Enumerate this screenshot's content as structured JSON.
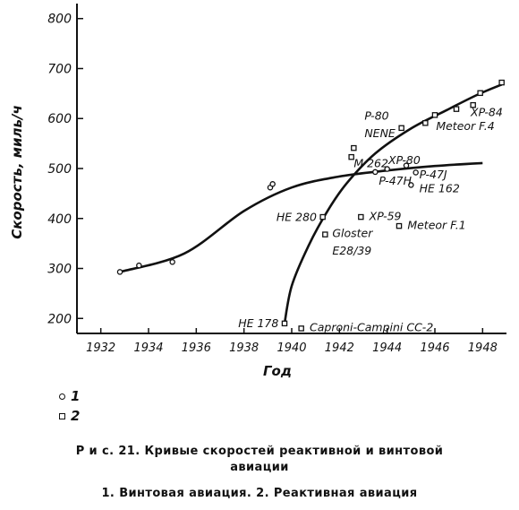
{
  "chart_data": {
    "type": "scatter",
    "xlabel": "Год",
    "ylabel": "Скорость, миль/ч",
    "xlim": [
      1931,
      1949
    ],
    "ylim": [
      170,
      830
    ],
    "xticks": [
      1932,
      1934,
      1936,
      1938,
      1940,
      1942,
      1944,
      1946,
      1948
    ],
    "yticks": [
      200,
      300,
      400,
      500,
      600,
      700,
      800
    ],
    "grid": false,
    "series": [
      {
        "name": "1",
        "marker": "circle",
        "points": [
          {
            "x": 1932.8,
            "y": 293
          },
          {
            "x": 1933.6,
            "y": 306
          },
          {
            "x": 1935.0,
            "y": 313
          },
          {
            "x": 1939.1,
            "y": 462
          },
          {
            "x": 1939.2,
            "y": 469
          },
          {
            "x": 1943.5,
            "y": 493
          },
          {
            "x": 1944.0,
            "y": 499
          },
          {
            "x": 1944.8,
            "y": 506
          },
          {
            "x": 1945.2,
            "y": 492
          },
          {
            "x": 1945.0,
            "y": 467
          }
        ],
        "curve": [
          {
            "x": 1932.8,
            "y": 293
          },
          {
            "x": 1935.5,
            "y": 330
          },
          {
            "x": 1938.0,
            "y": 415
          },
          {
            "x": 1940.0,
            "y": 462
          },
          {
            "x": 1942.0,
            "y": 484
          },
          {
            "x": 1944.0,
            "y": 496
          },
          {
            "x": 1946.0,
            "y": 505
          },
          {
            "x": 1948.0,
            "y": 511
          }
        ]
      },
      {
        "name": "2",
        "marker": "square",
        "points": [
          {
            "x": 1939.7,
            "y": 190
          },
          {
            "x": 1940.4,
            "y": 180
          },
          {
            "x": 1941.3,
            "y": 403
          },
          {
            "x": 1941.4,
            "y": 368
          },
          {
            "x": 1942.5,
            "y": 523
          },
          {
            "x": 1942.6,
            "y": 541
          },
          {
            "x": 1942.9,
            "y": 403
          },
          {
            "x": 1944.5,
            "y": 385
          },
          {
            "x": 1944.6,
            "y": 581
          },
          {
            "x": 1945.6,
            "y": 591
          },
          {
            "x": 1946.0,
            "y": 607
          },
          {
            "x": 1946.9,
            "y": 619
          },
          {
            "x": 1947.6,
            "y": 627
          },
          {
            "x": 1947.9,
            "y": 651
          },
          {
            "x": 1948.8,
            "y": 672
          }
        ],
        "curve": [
          {
            "x": 1939.7,
            "y": 190
          },
          {
            "x": 1940.0,
            "y": 265
          },
          {
            "x": 1940.7,
            "y": 345
          },
          {
            "x": 1941.5,
            "y": 415
          },
          {
            "x": 1942.3,
            "y": 470
          },
          {
            "x": 1943.5,
            "y": 530
          },
          {
            "x": 1945.0,
            "y": 580
          },
          {
            "x": 1946.5,
            "y": 617
          },
          {
            "x": 1947.8,
            "y": 648
          },
          {
            "x": 1948.8,
            "y": 668
          }
        ]
      }
    ],
    "annotations": [
      {
        "text": "HE 178",
        "x": 1939.6,
        "y": 190
      },
      {
        "text": "Caproni-Campini CC-2",
        "x": 1940.6,
        "y": 182
      },
      {
        "text": "Gloster",
        "x": 1941.55,
        "y": 370
      },
      {
        "text": "E28/39",
        "x": 1941.55,
        "y": 335
      },
      {
        "text": "HE 280",
        "x": 1941.2,
        "y": 402
      },
      {
        "text": "XP-59",
        "x": 1943.1,
        "y": 404
      },
      {
        "text": "Meteor F.1",
        "x": 1944.7,
        "y": 386
      },
      {
        "text": "M 262",
        "x": 1942.45,
        "y": 510
      },
      {
        "text": "P-47H",
        "x": 1943.5,
        "y": 475
      },
      {
        "text": "XP-80",
        "x": 1943.9,
        "y": 516
      },
      {
        "text": "P-47J",
        "x": 1945.2,
        "y": 487
      },
      {
        "text": "HE 162",
        "x": 1945.2,
        "y": 460
      },
      {
        "text": "P-80",
        "x": 1942.9,
        "y": 605
      },
      {
        "text": "NENE",
        "x": 1942.9,
        "y": 570
      },
      {
        "text": "Meteor F.4",
        "x": 1945.9,
        "y": 584
      },
      {
        "text": "XP-84",
        "x": 1947.35,
        "y": 612
      }
    ]
  },
  "legend": {
    "item1": "1",
    "item2": "2"
  },
  "caption": {
    "line1": "Р и с. 21. Кривые скоростей реактивной и винтовой",
    "line2": "авиации",
    "line3": "1. Винтовая авиация. 2. Реактивная авиация"
  }
}
